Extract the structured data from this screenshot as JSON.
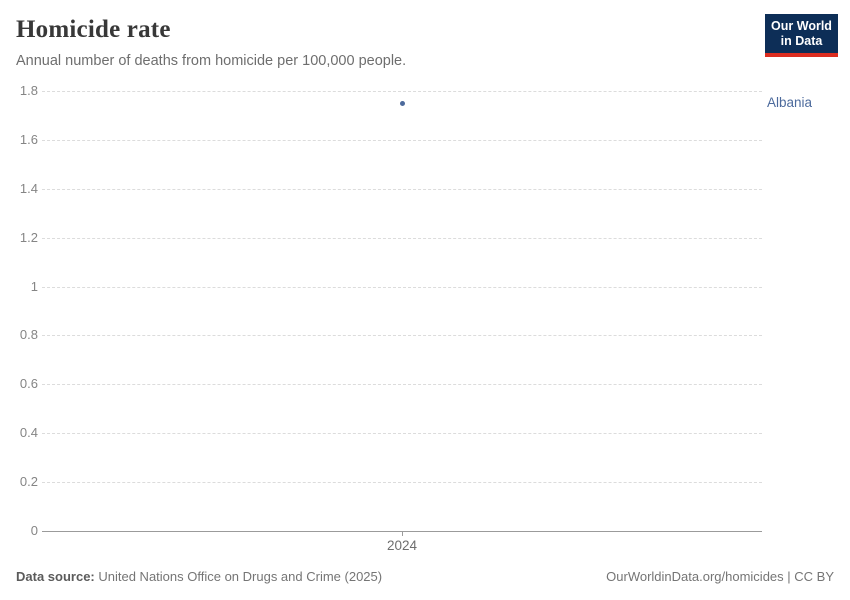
{
  "header": {
    "title": "Homicide rate",
    "subtitle": "Annual number of deaths from homicide per 100,000 people.",
    "logo": {
      "line1": "Our World",
      "line2": "in Data",
      "bg_color": "#0d2e57",
      "accent_color": "#dc2d20"
    }
  },
  "chart_data": {
    "type": "scatter",
    "title": "Homicide rate",
    "subtitle": "Annual number of deaths from homicide per 100,000 people.",
    "series": [
      {
        "name": "Albania",
        "color": "#4c6a9c",
        "x": [
          2024
        ],
        "y": [
          1.75
        ]
      }
    ],
    "x_ticks": [
      "2024"
    ],
    "y_ticks": [
      0,
      0.2,
      0.4,
      0.6,
      0.8,
      1,
      1.2,
      1.4,
      1.6,
      1.8
    ],
    "ylim": [
      0,
      1.8
    ],
    "grid": "horizontal-dashed",
    "legend_position": "right-of-plot"
  },
  "footer": {
    "source_label": "Data source:",
    "source_text": " United Nations Office on Drugs and Crime (2025)",
    "attribution": "OurWorldinData.org/homicides | CC BY"
  }
}
